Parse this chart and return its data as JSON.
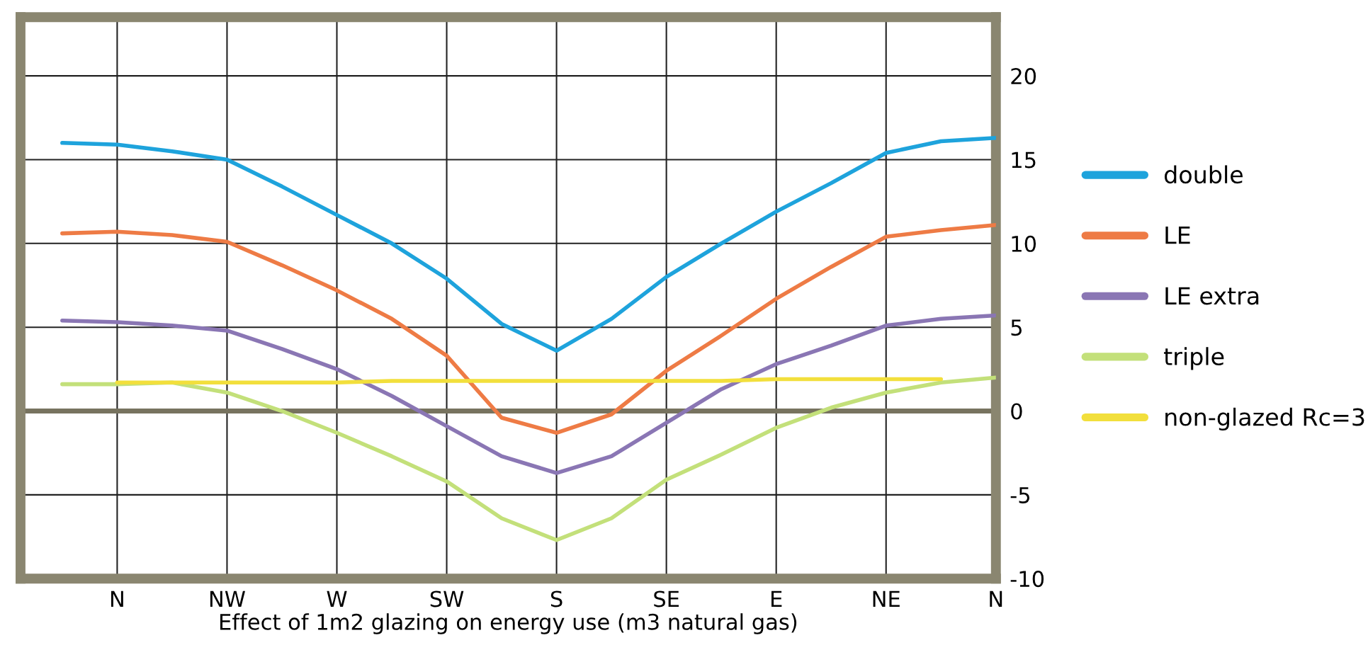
{
  "chart_data": {
    "type": "line",
    "xlabel": "Effect of 1m2 glazing on energy use (m3 natural gas)",
    "categories": [
      null,
      "N",
      null,
      "NW",
      null,
      "W",
      null,
      "SW",
      null,
      "S",
      null,
      "SE",
      null,
      "E",
      null,
      "NE",
      null,
      "N"
    ],
    "ylim": [
      -10,
      23.5
    ],
    "yticks": [
      -10,
      -5,
      0,
      5,
      10,
      15,
      20
    ],
    "grid": true,
    "legend": "right",
    "line_style": "solid",
    "marker": "none",
    "ref_lines": [
      {
        "axis": "y",
        "value": 0,
        "color": "#77735f"
      }
    ],
    "series": [
      {
        "name": "double",
        "color": "#1ea3dc",
        "values": [
          16.0,
          15.9,
          15.5,
          15.0,
          13.4,
          11.7,
          10.0,
          7.9,
          5.2,
          3.6,
          5.5,
          8.0,
          10.0,
          11.9,
          13.6,
          15.4,
          16.1,
          16.3
        ]
      },
      {
        "name": "LE",
        "color": "#ee7b45",
        "values": [
          10.6,
          10.7,
          10.5,
          10.1,
          8.7,
          7.2,
          5.5,
          3.3,
          -0.4,
          -1.3,
          -0.2,
          2.4,
          4.5,
          6.7,
          8.6,
          10.4,
          10.8,
          11.1
        ]
      },
      {
        "name": "LE extra",
        "color": "#8a76b4",
        "values": [
          5.4,
          5.3,
          5.1,
          4.8,
          3.7,
          2.5,
          0.9,
          -0.9,
          -2.7,
          -3.7,
          -2.7,
          -0.7,
          1.3,
          2.8,
          3.9,
          5.1,
          5.5,
          5.7
        ]
      },
      {
        "name": "triple",
        "color": "#c3e07a",
        "values": [
          1.6,
          1.6,
          1.7,
          1.1,
          0.0,
          -1.3,
          -2.7,
          -4.2,
          -6.4,
          -7.7,
          -6.4,
          -4.1,
          -2.6,
          -1.0,
          0.2,
          1.1,
          1.7,
          2.0
        ]
      },
      {
        "name": "non-glazed Rc=3",
        "color": "#f2df3c",
        "values": [
          null,
          1.7,
          1.7,
          1.7,
          1.7,
          1.7,
          1.8,
          1.8,
          1.8,
          1.8,
          1.8,
          1.8,
          1.8,
          1.9,
          1.9,
          1.9,
          1.9,
          null
        ]
      }
    ]
  }
}
